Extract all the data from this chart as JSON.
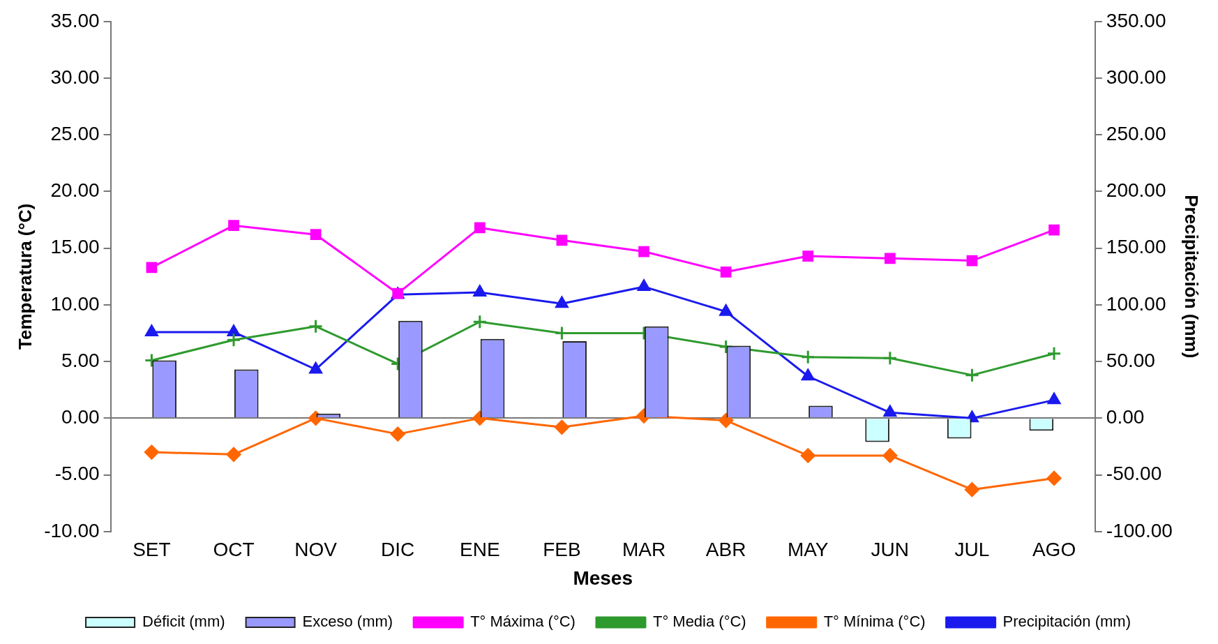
{
  "chart_data": {
    "type": "line",
    "categories": [
      "SET",
      "OCT",
      "NOV",
      "DIC",
      "ENE",
      "FEB",
      "MAR",
      "ABR",
      "MAY",
      "JUN",
      "JUL",
      "AGO"
    ],
    "xlabel": "Meses",
    "ylabel": "Temperatura (°C)",
    "y2label": "Precipitación (mm)",
    "ylim": [
      -10,
      35
    ],
    "yticks": [
      {
        "value": -10,
        "label": "-10.00"
      },
      {
        "value": -5,
        "label": "-5.00"
      },
      {
        "value": 0,
        "label": "0.00"
      },
      {
        "value": 5,
        "label": "5.00"
      },
      {
        "value": 10,
        "label": "10.00"
      },
      {
        "value": 15,
        "label": "15.00"
      },
      {
        "value": 20,
        "label": "20.00"
      },
      {
        "value": 25,
        "label": "25.00"
      },
      {
        "value": 30,
        "label": "30.00"
      },
      {
        "value": 35,
        "label": "35.00"
      }
    ],
    "y2lim": [
      -100,
      350
    ],
    "y2ticks": [
      {
        "value": -100,
        "label": "-100.00"
      },
      {
        "value": -50,
        "label": "-50.00"
      },
      {
        "value": 0,
        "label": "0.00"
      },
      {
        "value": 50,
        "label": "50.00"
      },
      {
        "value": 100,
        "label": "100.00"
      },
      {
        "value": 150,
        "label": "150.00"
      },
      {
        "value": 200,
        "label": "200.00"
      },
      {
        "value": 250,
        "label": "250.00"
      },
      {
        "value": 300,
        "label": "300.00"
      },
      {
        "value": 350,
        "label": "350.00"
      }
    ],
    "legend": "bottom",
    "series": [
      {
        "name": "Déficit (mm)",
        "type": "bar",
        "axis": "y2",
        "color": "#ccffff",
        "values": [
          null,
          null,
          null,
          null,
          null,
          null,
          null,
          null,
          null,
          -21,
          -18,
          -11
        ]
      },
      {
        "name": "Exceso (mm)",
        "type": "bar",
        "axis": "y2",
        "color": "#9999ff",
        "values": [
          51,
          43,
          4,
          86,
          70,
          68,
          81,
          64,
          11,
          null,
          null,
          null
        ]
      },
      {
        "name": "T° Máxima (°C)",
        "marker": "square",
        "color": "#ff00ff",
        "values": [
          13.3,
          17.0,
          16.2,
          11.0,
          16.8,
          15.7,
          14.7,
          12.9,
          14.3,
          14.1,
          13.9,
          16.6
        ]
      },
      {
        "name": "T° Media (°C)",
        "marker": "cross",
        "color": "#2e9a2e",
        "values": [
          5.1,
          6.9,
          8.1,
          4.8,
          8.5,
          7.5,
          7.5,
          6.3,
          5.4,
          5.3,
          3.8,
          5.7
        ]
      },
      {
        "name": "T° Mínima (°C)",
        "marker": "diamond",
        "color": "#ff6600",
        "values": [
          -3.0,
          -3.2,
          0,
          -1.4,
          0,
          -0.8,
          0.2,
          -0.2,
          -3.3,
          -3.3,
          -6.3,
          -5.3
        ]
      },
      {
        "name": "Precipitación (mm)",
        "marker": "triangle",
        "axis": "y2",
        "color": "#1a1aee",
        "values": [
          76,
          76,
          43,
          109,
          111,
          101,
          116,
          94,
          37,
          5,
          0,
          16
        ]
      }
    ]
  }
}
